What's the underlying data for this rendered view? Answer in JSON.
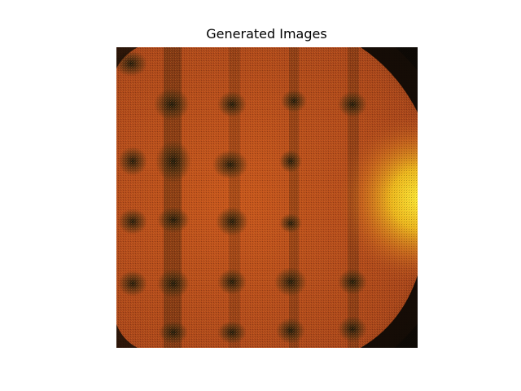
{
  "figure": {
    "title": "Generated Images"
  },
  "image": {
    "description_icon": "generated-image",
    "colors": {
      "base": "#b04a1c",
      "dark": "#1a1208",
      "highlight": "#ffe020",
      "mid": "#d8641e",
      "corner": "#0e0a05"
    }
  }
}
